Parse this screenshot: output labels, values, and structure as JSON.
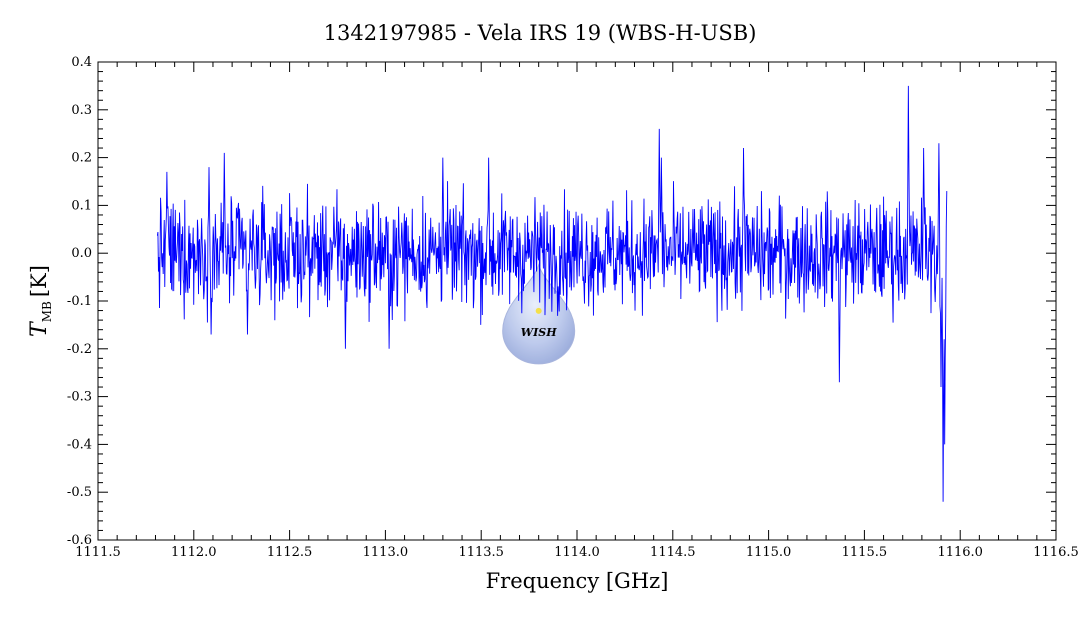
{
  "chart_data": {
    "type": "line",
    "title": "1342197985 - Vela IRS 19 (WBS-H-USB)",
    "xlabel": "Frequency [GHz]",
    "ylabel_main": "T",
    "ylabel_sub": "MB",
    "ylabel_unit": "[K]",
    "xlim": [
      1111.5,
      1116.5
    ],
    "ylim": [
      -0.6,
      0.4
    ],
    "x_ticks": [
      1111.5,
      1112.0,
      1112.5,
      1113.0,
      1113.5,
      1114.0,
      1114.5,
      1115.0,
      1115.5,
      1116.0,
      1116.5
    ],
    "x_tick_labels": [
      "1111.5",
      "1112.0",
      "1112.5",
      "1113.0",
      "1113.5",
      "1114.0",
      "1114.5",
      "1115.0",
      "1115.5",
      "1116.0",
      "1116.5"
    ],
    "y_ticks": [
      0.4,
      0.3,
      0.2,
      0.1,
      0.0,
      -0.1,
      -0.2,
      -0.3,
      -0.4,
      -0.5,
      -0.6
    ],
    "y_tick_labels": [
      "0.4",
      "0.3",
      "0.2",
      "0.1",
      "0.0",
      "-0.1",
      "-0.2",
      "-0.3",
      "-0.4",
      "-0.5",
      "-0.6"
    ],
    "grid": false,
    "series": [
      {
        "color": "#0000ff",
        "x_start": 1111.81,
        "x_end": 1115.93,
        "noise_rms": 0.065,
        "features": [
          {
            "x": 1111.86,
            "y": 0.17
          },
          {
            "x": 1112.08,
            "y": 0.18
          },
          {
            "x": 1112.09,
            "y": -0.17
          },
          {
            "x": 1112.16,
            "y": 0.21
          },
          {
            "x": 1112.28,
            "y": -0.17
          },
          {
            "x": 1112.79,
            "y": -0.2
          },
          {
            "x": 1113.02,
            "y": -0.2
          },
          {
            "x": 1113.3,
            "y": 0.2
          },
          {
            "x": 1113.54,
            "y": 0.2
          },
          {
            "x": 1114.43,
            "y": 0.26
          },
          {
            "x": 1114.44,
            "y": 0.2
          },
          {
            "x": 1114.87,
            "y": 0.22
          },
          {
            "x": 1115.37,
            "y": -0.27
          },
          {
            "x": 1115.73,
            "y": 0.35
          },
          {
            "x": 1115.81,
            "y": 0.22
          },
          {
            "x": 1115.89,
            "y": 0.23
          },
          {
            "x": 1115.9,
            "y": -0.28
          },
          {
            "x": 1115.91,
            "y": -0.52
          },
          {
            "x": 1115.92,
            "y": -0.4
          },
          {
            "x": 1115.93,
            "y": 0.13
          }
        ]
      }
    ],
    "watermark": {
      "text": "WISH",
      "x": 1113.8,
      "y": -0.15
    }
  }
}
